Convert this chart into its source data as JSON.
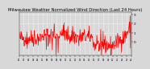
{
  "title": "Milwaukee Weather Normalized Wind Direction (Last 24 Hours)",
  "background_color": "#d8d8d8",
  "plot_bg_color": "#d8d8d8",
  "line_color": "#ff0000",
  "line_width": 0.5,
  "grid_color": "#ffffff",
  "ylim": [
    -1.5,
    3.2
  ],
  "yticks": [
    0,
    1,
    2,
    3
  ],
  "num_points": 288,
  "seed": 42,
  "title_fontsize": 3.8,
  "tick_fontsize": 3.0
}
